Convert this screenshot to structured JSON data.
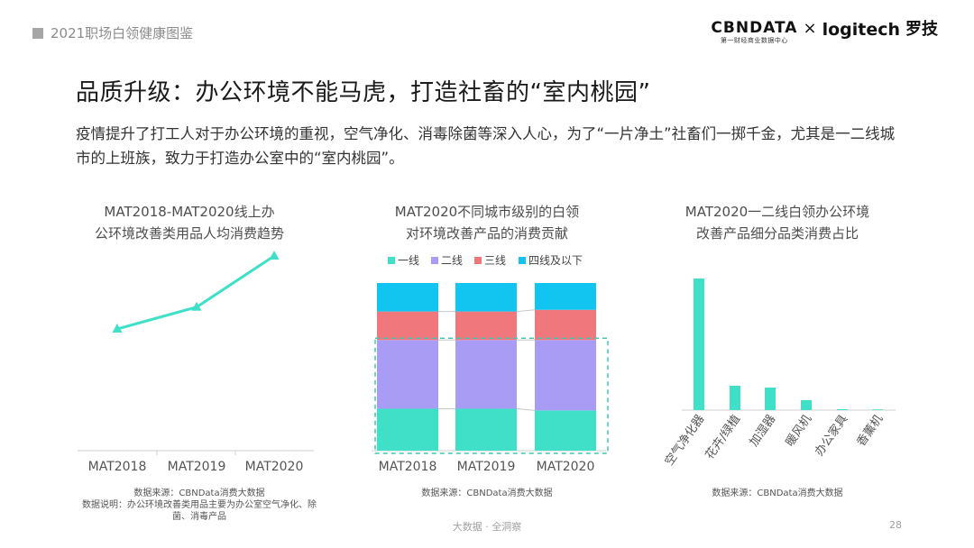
{
  "header": {
    "report_tag": "2021职场白领健康图鉴",
    "brand_cbn": "CBNDATA",
    "brand_cbn_sub": "第一财经商业数据中心",
    "brand_times": "×",
    "brand_logitech": "logitech",
    "brand_luoji": "罗技"
  },
  "page": {
    "title": "品质升级：办公环境不能马虎，打造社畜的“室内桃园”",
    "desc": "疫情提升了打工人对于办公环境的重视，空气净化、消毒除菌等深入人心，为了“一片净土”社畜们一掷千金，尤其是一二线城市的上班族，致力于打造办公室中的“室内桃园”。"
  },
  "footer": {
    "center": "大数据 · 全洞察",
    "page_number": "28"
  },
  "colors": {
    "teal": "#40e0c8",
    "purple": "#a99cf5",
    "red": "#f0787c",
    "blue": "#12c4f0",
    "dashed": "#40c9b0"
  },
  "chart_data": [
    {
      "type": "line",
      "title_line1": "MAT2018-MAT2020线上办",
      "title_line2": "公环境改善类用品人均消费趋势",
      "categories": [
        "MAT2018",
        "MAT2019",
        "MAT2020"
      ],
      "values": [
        1.0,
        1.18,
        1.6
      ],
      "notes": [
        "数据来源：CBNData消费大数据",
        "数据说明：办公环境改善类用品主要为办公室空气净化、除",
        "菌、消毒产品"
      ]
    },
    {
      "type": "bar",
      "stacked": true,
      "title_line1": "MAT2020不同城市级别的白领",
      "title_line2": "对环境改善产品的消费贡献",
      "categories": [
        "MAT2018",
        "MAT2019",
        "MAT2020"
      ],
      "series": [
        {
          "name": "一线",
          "color": "#40e0c8",
          "values": [
            25,
            25,
            24
          ]
        },
        {
          "name": "二线",
          "color": "#a99cf5",
          "values": [
            41,
            41,
            42
          ]
        },
        {
          "name": "三线",
          "color": "#f0787c",
          "values": [
            17,
            17,
            18
          ]
        },
        {
          "name": "四线及以下",
          "color": "#12c4f0",
          "values": [
            17,
            17,
            16
          ]
        }
      ],
      "ylim": [
        0,
        100
      ],
      "notes": [
        "数据来源：CBNData消费大数据"
      ]
    },
    {
      "type": "bar",
      "title_line1": "MAT2020一二线白领办公环境",
      "title_line2": "改善产品细分品类消费占比",
      "categories": [
        "空气净化器",
        "花卉/绿植",
        "加湿器",
        "暖风机",
        "办公家具",
        "香薰机"
      ],
      "values": [
        73,
        13.5,
        12.5,
        5.5,
        0.5,
        0.2
      ],
      "ylim": [
        0,
        80
      ],
      "notes": [
        "数据来源：CBNData消费大数据"
      ]
    }
  ]
}
